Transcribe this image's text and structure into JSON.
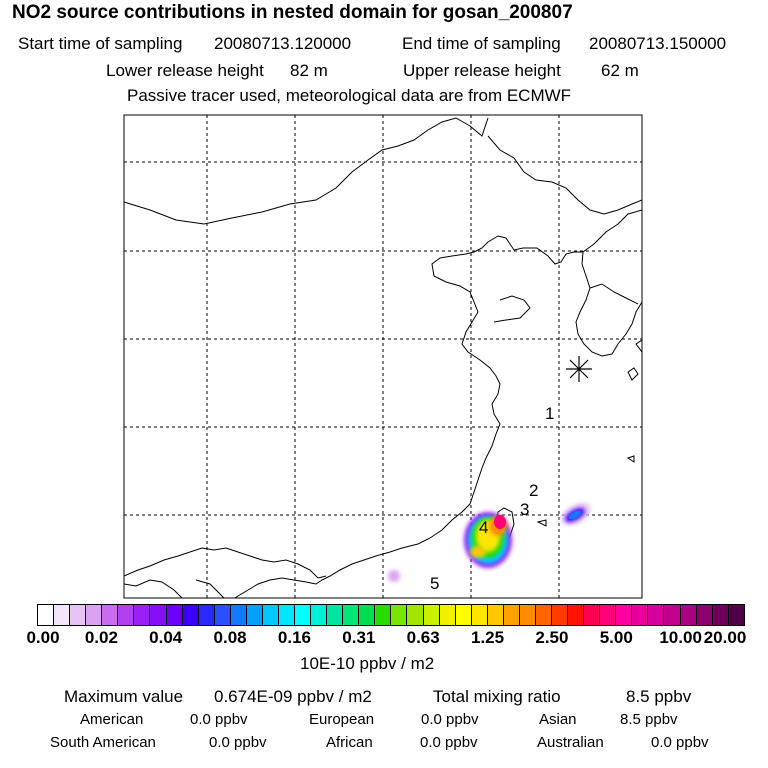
{
  "header": {
    "title": "NO2 source contributions in nested domain for gosan_200807",
    "start_label": "Start time of sampling",
    "start_value": "20080713.120000",
    "end_label": "End time of sampling",
    "end_value": "20080713.150000",
    "lower_label": "Lower release height",
    "lower_value": "82 m",
    "upper_label": "Upper release height",
    "upper_value": "62 m",
    "note": "Passive tracer used, meteorological data are from ECMWF"
  },
  "map": {
    "station_icon": "asterisk-icon",
    "markers": [
      "1",
      "2",
      "3",
      "4",
      "5"
    ]
  },
  "colorbar": {
    "ticks": [
      "0.00",
      "0.02",
      "0.04",
      "0.08",
      "0.16",
      "0.31",
      "0.63",
      "1.25",
      "2.50",
      "5.00",
      "10.00",
      "20.00"
    ],
    "colors": [
      "#ffffff",
      "#f4e6fa",
      "#e8c4f4",
      "#dca2f2",
      "#c86cf0",
      "#b040f0",
      "#9a20f6",
      "#8410f8",
      "#6a00fa",
      "#3c00ff",
      "#2828ff",
      "#2850ff",
      "#1478ff",
      "#00a0ff",
      "#00c8ff",
      "#00e6ff",
      "#00ffff",
      "#00f0d8",
      "#00e6a0",
      "#00e678",
      "#00dc50",
      "#28dc00",
      "#78e600",
      "#a0e600",
      "#c8f000",
      "#f0f000",
      "#ffff00",
      "#ffe600",
      "#ffc800",
      "#ffa000",
      "#ff8c00",
      "#ff6400",
      "#ff3c00",
      "#ff1400",
      "#ff0050",
      "#ff0078",
      "#ff00a0",
      "#e6009a",
      "#d4009a",
      "#c2008c",
      "#aa0082",
      "#8c006e",
      "#6e005a",
      "#500046"
    ],
    "unit": "10E-10 ppbv / m2"
  },
  "summary": {
    "max_label": "Maximum value",
    "max_value": "0.674E-09 ppbv / m2",
    "total_label": "Total mixing ratio",
    "total_value": "8.5 ppbv",
    "rows": [
      [
        {
          "name": "American",
          "value": "0.0 ppbv"
        },
        {
          "name": "European",
          "value": "0.0 ppbv"
        },
        {
          "name": "Asian",
          "value": "8.5 ppbv"
        }
      ],
      [
        {
          "name": "South American",
          "value": "0.0 ppbv"
        },
        {
          "name": "African",
          "value": "0.0 ppbv"
        },
        {
          "name": "Australian",
          "value": "0.0 ppbv"
        }
      ]
    ]
  }
}
